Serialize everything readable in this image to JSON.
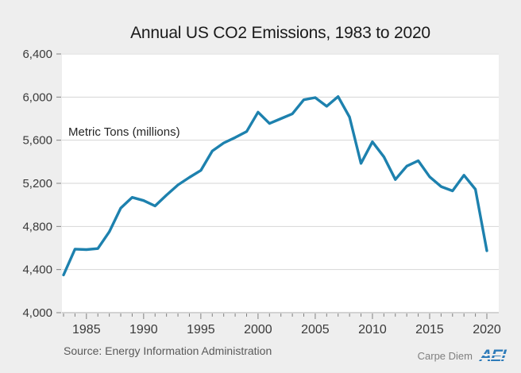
{
  "chart_data": {
    "type": "line",
    "title": "Annual US CO2 Emissions, 1983 to 2020",
    "units_label": "Metric Tons (millions)",
    "x": [
      1983,
      1984,
      1985,
      1986,
      1987,
      1988,
      1989,
      1990,
      1991,
      1992,
      1993,
      1994,
      1995,
      1996,
      1997,
      1998,
      1999,
      2000,
      2001,
      2002,
      2003,
      2004,
      2005,
      2006,
      2007,
      2008,
      2009,
      2010,
      2011,
      2012,
      2013,
      2014,
      2015,
      2016,
      2017,
      2018,
      2019,
      2020
    ],
    "series": [
      {
        "name": "Annual US CO2 emissions",
        "values": [
          4350,
          4590,
          4585,
          4595,
          4750,
          4970,
          5070,
          5040,
          4990,
          5090,
          5185,
          5255,
          5320,
          5500,
          5575,
          5625,
          5680,
          5860,
          5755,
          5800,
          5845,
          5975,
          5995,
          5915,
          6005,
          5815,
          5385,
          5585,
          5445,
          5235,
          5360,
          5410,
          5260,
          5170,
          5130,
          5275,
          5145,
          4575
        ]
      }
    ],
    "xlim": [
      1983,
      2020
    ],
    "ylim": [
      4000,
      6400
    ],
    "y_ticks": [
      4000,
      4400,
      4800,
      5200,
      5600,
      6000,
      6400
    ],
    "x_labeled_ticks": [
      1985,
      1990,
      1995,
      2000,
      2005,
      2010,
      2015,
      2020
    ],
    "grid": "horizontal gridlines on, white plot area",
    "legend": "none",
    "line_color": "#1d81ae"
  },
  "footer": {
    "source": "Source: Energy Information Administration",
    "brand": "Carpe Diem",
    "logo_text": "AEI"
  },
  "colors": {
    "page_background": "#eeeeee",
    "plot_background": "#ffffff",
    "gridline": "#d6d6d6",
    "axis_line": "#a6a6a6",
    "tick": "#808080",
    "tick_label": "#3a3a3a",
    "line": "#1d81ae",
    "aei_blue": "#2d7bb9"
  }
}
